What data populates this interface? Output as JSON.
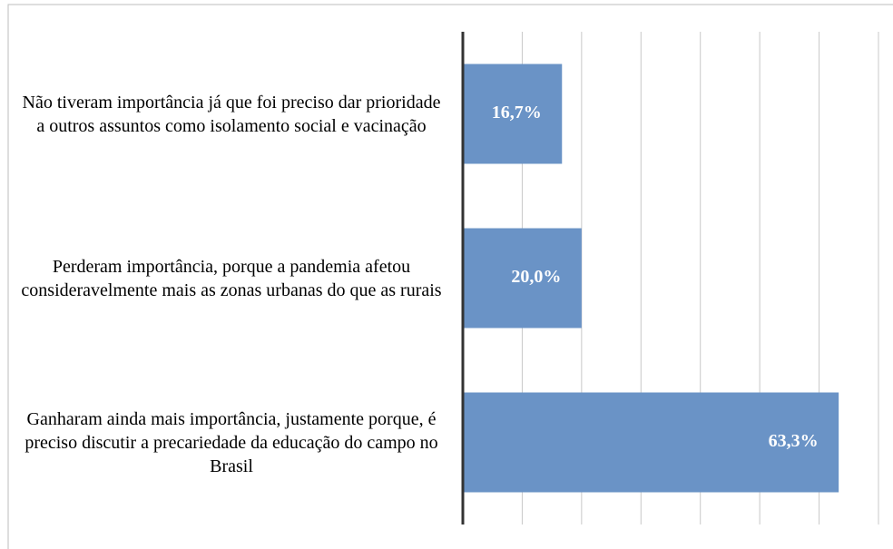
{
  "chart_data": {
    "type": "bar",
    "orientation": "horizontal",
    "categories": [
      "Não tiveram importância já que foi preciso dar prioridade a outros assuntos como isolamento social e vacinação",
      "Perderam importância, porque a pandemia afetou consideravelmente mais as zonas urbanas do que as rurais",
      "Ganharam ainda mais importância, justamente porque, é preciso discutir a precariedade da educação do campo no Brasil"
    ],
    "values": [
      16.7,
      20.0,
      63.3
    ],
    "value_labels": [
      "16,7%",
      "20,0%",
      "63,3%"
    ],
    "color": "#6a93c6",
    "xlim": [
      0,
      70
    ],
    "xticks": [
      0,
      10,
      20,
      30,
      40,
      50,
      60,
      70
    ],
    "grid": true
  }
}
